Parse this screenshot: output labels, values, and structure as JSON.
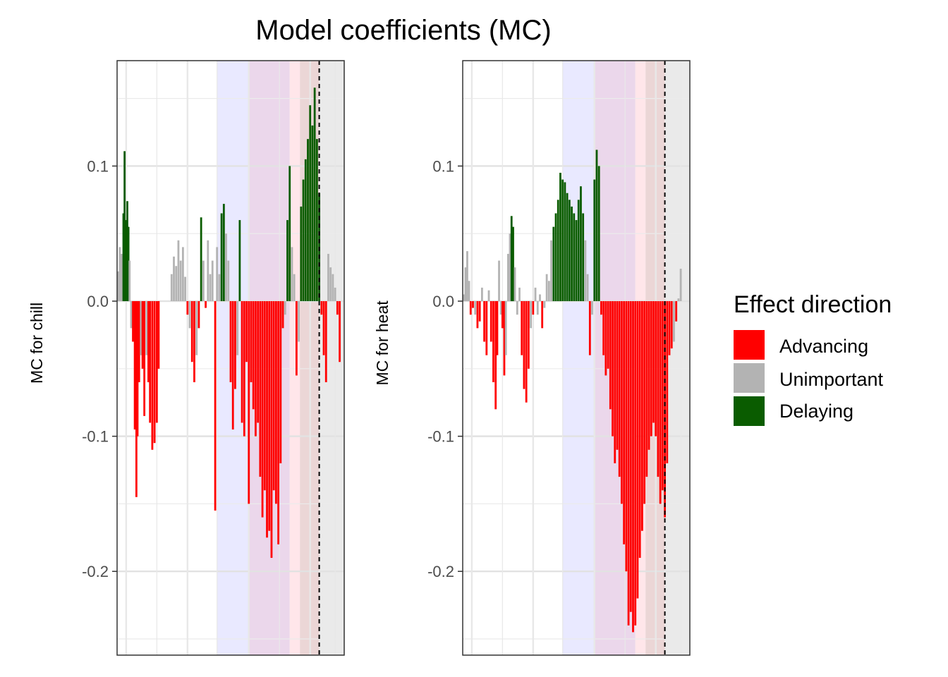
{
  "chart_data": {
    "type": "bar",
    "title": "Model coefficients (MC)",
    "ylim": [
      -0.262,
      0.178
    ],
    "yticks": [
      "0.1",
      "0.0",
      "-0.1",
      "-0.2"
    ],
    "ytick_values": [
      0.1,
      0.0,
      -0.1,
      -0.2
    ],
    "grid": true,
    "reference_line": "dashed",
    "legend": {
      "title": "Effect direction",
      "placement": "right",
      "items": [
        {
          "label": "Advancing",
          "color": "#ff0000"
        },
        {
          "label": "Unimportant",
          "color": "#b3b3b3"
        },
        {
          "label": "Delaying",
          "color": "#0a5c00"
        }
      ]
    },
    "colors": {
      "advancing": "#ff0000",
      "unimportant": "#b3b3b3",
      "delaying": "#0a5c00",
      "band_blue": "#e5e5ff",
      "band_purple": "#e8d0e8",
      "band_pink": "#ffe2e6",
      "band_brown": "#e8cfcf",
      "band_grey": "#e6e6e6"
    },
    "panels": [
      {
        "ylabel": "MC for chill",
        "bars": [
          {
            "x": 0.005,
            "y": 0.022
          },
          {
            "x": 0.012,
            "y": 0.04
          },
          {
            "x": 0.02,
            "y": 0.035
          },
          {
            "x": 0.028,
            "y": 0.065
          },
          {
            "x": 0.033,
            "y": 0.111
          },
          {
            "x": 0.038,
            "y": 0.06
          },
          {
            "x": 0.045,
            "y": 0.074
          },
          {
            "x": 0.05,
            "y": 0.055
          },
          {
            "x": 0.055,
            "y": 0.03
          },
          {
            "x": 0.062,
            "y": -0.02
          },
          {
            "x": 0.07,
            "y": -0.03
          },
          {
            "x": 0.078,
            "y": -0.095
          },
          {
            "x": 0.085,
            "y": -0.145
          },
          {
            "x": 0.09,
            "y": -0.1
          },
          {
            "x": 0.097,
            "y": -0.06
          },
          {
            "x": 0.105,
            "y": -0.04
          },
          {
            "x": 0.112,
            "y": -0.05
          },
          {
            "x": 0.12,
            "y": -0.085
          },
          {
            "x": 0.13,
            "y": -0.04
          },
          {
            "x": 0.138,
            "y": -0.06
          },
          {
            "x": 0.145,
            "y": -0.09
          },
          {
            "x": 0.155,
            "y": -0.11
          },
          {
            "x": 0.165,
            "y": -0.105
          },
          {
            "x": 0.175,
            "y": -0.09
          },
          {
            "x": 0.183,
            "y": -0.05
          },
          {
            "x": 0.24,
            "y": 0.02
          },
          {
            "x": 0.25,
            "y": 0.033
          },
          {
            "x": 0.26,
            "y": 0.026
          },
          {
            "x": 0.27,
            "y": 0.045
          },
          {
            "x": 0.28,
            "y": 0.03
          },
          {
            "x": 0.29,
            "y": 0.04
          },
          {
            "x": 0.3,
            "y": 0.018
          },
          {
            "x": 0.31,
            "y": -0.01
          },
          {
            "x": 0.32,
            "y": -0.02
          },
          {
            "x": 0.33,
            "y": -0.045
          },
          {
            "x": 0.34,
            "y": -0.06
          },
          {
            "x": 0.35,
            "y": -0.04
          },
          {
            "x": 0.36,
            "y": -0.02
          },
          {
            "x": 0.37,
            "y": 0.062
          },
          {
            "x": 0.38,
            "y": 0.03
          },
          {
            "x": 0.39,
            "y": -0.005
          },
          {
            "x": 0.4,
            "y": 0.045
          },
          {
            "x": 0.41,
            "y": 0.02
          },
          {
            "x": 0.42,
            "y": 0.03
          },
          {
            "x": 0.432,
            "y": -0.155
          },
          {
            "x": 0.44,
            "y": 0.04
          },
          {
            "x": 0.45,
            "y": 0.02
          },
          {
            "x": 0.46,
            "y": 0.065
          },
          {
            "x": 0.47,
            "y": 0.072
          },
          {
            "x": 0.48,
            "y": 0.05
          },
          {
            "x": 0.49,
            "y": 0.03
          },
          {
            "x": 0.5,
            "y": -0.06
          },
          {
            "x": 0.51,
            "y": -0.095
          },
          {
            "x": 0.52,
            "y": -0.065
          },
          {
            "x": 0.53,
            "y": -0.04
          },
          {
            "x": 0.54,
            "y": 0.06
          },
          {
            "x": 0.55,
            "y": -0.09
          },
          {
            "x": 0.56,
            "y": -0.1
          },
          {
            "x": 0.57,
            "y": -0.045
          },
          {
            "x": 0.58,
            "y": -0.15
          },
          {
            "x": 0.59,
            "y": -0.06
          },
          {
            "x": 0.6,
            "y": -0.08
          },
          {
            "x": 0.61,
            "y": -0.1
          },
          {
            "x": 0.62,
            "y": -0.09
          },
          {
            "x": 0.63,
            "y": -0.13
          },
          {
            "x": 0.64,
            "y": -0.16
          },
          {
            "x": 0.65,
            "y": -0.14
          },
          {
            "x": 0.66,
            "y": -0.175
          },
          {
            "x": 0.67,
            "y": -0.17
          },
          {
            "x": 0.68,
            "y": -0.19
          },
          {
            "x": 0.69,
            "y": -0.14
          },
          {
            "x": 0.7,
            "y": -0.15
          },
          {
            "x": 0.71,
            "y": -0.18
          },
          {
            "x": 0.72,
            "y": -0.12
          },
          {
            "x": 0.73,
            "y": -0.02
          },
          {
            "x": 0.74,
            "y": -0.01
          },
          {
            "x": 0.75,
            "y": 0.06
          },
          {
            "x": 0.76,
            "y": 0.1
          },
          {
            "x": 0.77,
            "y": 0.04
          },
          {
            "x": 0.78,
            "y": 0.02
          },
          {
            "x": 0.79,
            "y": -0.055
          },
          {
            "x": 0.8,
            "y": -0.03
          },
          {
            "x": 0.81,
            "y": 0.07
          },
          {
            "x": 0.82,
            "y": 0.09
          },
          {
            "x": 0.83,
            "y": 0.105
          },
          {
            "x": 0.84,
            "y": 0.12
          },
          {
            "x": 0.85,
            "y": 0.145
          },
          {
            "x": 0.86,
            "y": 0.13
          },
          {
            "x": 0.87,
            "y": 0.158
          },
          {
            "x": 0.88,
            "y": 0.12
          },
          {
            "x": 0.89,
            "y": 0.08
          },
          {
            "x": 0.9,
            "y": -0.01
          },
          {
            "x": 0.91,
            "y": -0.04
          },
          {
            "x": 0.92,
            "y": -0.06
          },
          {
            "x": 0.93,
            "y": 0.035
          },
          {
            "x": 0.94,
            "y": 0.025
          },
          {
            "x": 0.95,
            "y": 0.02
          },
          {
            "x": 0.96,
            "y": 0.01
          },
          {
            "x": 0.97,
            "y": -0.01
          },
          {
            "x": 0.98,
            "y": -0.045
          }
        ]
      },
      {
        "ylabel": "MC for heat",
        "bars": [
          {
            "x": 0.005,
            "y": 0.005
          },
          {
            "x": 0.012,
            "y": 0.025
          },
          {
            "x": 0.02,
            "y": 0.037
          },
          {
            "x": 0.028,
            "y": 0.015
          },
          {
            "x": 0.035,
            "y": -0.01
          },
          {
            "x": 0.045,
            "y": -0.005
          },
          {
            "x": 0.055,
            "y": -0.01
          },
          {
            "x": 0.065,
            "y": -0.02
          },
          {
            "x": 0.075,
            "y": -0.015
          },
          {
            "x": 0.085,
            "y": 0.01
          },
          {
            "x": 0.095,
            "y": -0.03
          },
          {
            "x": 0.105,
            "y": -0.04
          },
          {
            "x": 0.115,
            "y": 0.008
          },
          {
            "x": 0.125,
            "y": -0.03
          },
          {
            "x": 0.135,
            "y": -0.06
          },
          {
            "x": 0.145,
            "y": -0.08
          },
          {
            "x": 0.152,
            "y": -0.04
          },
          {
            "x": 0.16,
            "y": 0.03
          },
          {
            "x": 0.168,
            "y": -0.01
          },
          {
            "x": 0.175,
            "y": -0.02
          },
          {
            "x": 0.183,
            "y": -0.055
          },
          {
            "x": 0.19,
            "y": -0.04
          },
          {
            "x": 0.2,
            "y": 0.035
          },
          {
            "x": 0.208,
            "y": 0.05
          },
          {
            "x": 0.215,
            "y": 0.063
          },
          {
            "x": 0.222,
            "y": 0.055
          },
          {
            "x": 0.23,
            "y": 0.025
          },
          {
            "x": 0.24,
            "y": -0.01
          },
          {
            "x": 0.25,
            "y": 0.01
          },
          {
            "x": 0.26,
            "y": -0.04
          },
          {
            "x": 0.27,
            "y": -0.065
          },
          {
            "x": 0.28,
            "y": -0.075
          },
          {
            "x": 0.29,
            "y": -0.05
          },
          {
            "x": 0.3,
            "y": -0.02
          },
          {
            "x": 0.31,
            "y": -0.01
          },
          {
            "x": 0.32,
            "y": 0.01
          },
          {
            "x": 0.33,
            "y": -0.01
          },
          {
            "x": 0.34,
            "y": 0.005
          },
          {
            "x": 0.35,
            "y": -0.02
          },
          {
            "x": 0.36,
            "y": -0.005
          },
          {
            "x": 0.37,
            "y": 0.02
          },
          {
            "x": 0.38,
            "y": 0.015
          },
          {
            "x": 0.39,
            "y": 0.045
          },
          {
            "x": 0.4,
            "y": 0.055
          },
          {
            "x": 0.41,
            "y": 0.065
          },
          {
            "x": 0.42,
            "y": 0.075
          },
          {
            "x": 0.43,
            "y": 0.095
          },
          {
            "x": 0.44,
            "y": 0.09
          },
          {
            "x": 0.45,
            "y": 0.088
          },
          {
            "x": 0.46,
            "y": 0.08
          },
          {
            "x": 0.47,
            "y": 0.075
          },
          {
            "x": 0.48,
            "y": 0.07
          },
          {
            "x": 0.49,
            "y": 0.065
          },
          {
            "x": 0.5,
            "y": 0.06
          },
          {
            "x": 0.51,
            "y": 0.075
          },
          {
            "x": 0.52,
            "y": 0.085
          },
          {
            "x": 0.53,
            "y": 0.065
          },
          {
            "x": 0.54,
            "y": 0.045
          },
          {
            "x": 0.55,
            "y": 0.02
          },
          {
            "x": 0.56,
            "y": -0.04
          },
          {
            "x": 0.57,
            "y": -0.01
          },
          {
            "x": 0.58,
            "y": 0.09
          },
          {
            "x": 0.59,
            "y": 0.112
          },
          {
            "x": 0.6,
            "y": 0.1
          },
          {
            "x": 0.61,
            "y": -0.01
          },
          {
            "x": 0.62,
            "y": -0.04
          },
          {
            "x": 0.63,
            "y": -0.055
          },
          {
            "x": 0.64,
            "y": -0.05
          },
          {
            "x": 0.65,
            "y": -0.08
          },
          {
            "x": 0.66,
            "y": -0.1
          },
          {
            "x": 0.67,
            "y": -0.12
          },
          {
            "x": 0.68,
            "y": -0.11
          },
          {
            "x": 0.69,
            "y": -0.13
          },
          {
            "x": 0.7,
            "y": -0.15
          },
          {
            "x": 0.71,
            "y": -0.18
          },
          {
            "x": 0.72,
            "y": -0.2
          },
          {
            "x": 0.73,
            "y": -0.24
          },
          {
            "x": 0.74,
            "y": -0.23
          },
          {
            "x": 0.75,
            "y": -0.245
          },
          {
            "x": 0.76,
            "y": -0.24
          },
          {
            "x": 0.77,
            "y": -0.22
          },
          {
            "x": 0.78,
            "y": -0.19
          },
          {
            "x": 0.79,
            "y": -0.17
          },
          {
            "x": 0.8,
            "y": -0.15
          },
          {
            "x": 0.81,
            "y": -0.13
          },
          {
            "x": 0.82,
            "y": -0.11
          },
          {
            "x": 0.83,
            "y": -0.1
          },
          {
            "x": 0.84,
            "y": -0.09
          },
          {
            "x": 0.85,
            "y": -0.1
          },
          {
            "x": 0.86,
            "y": -0.13
          },
          {
            "x": 0.87,
            "y": -0.15
          },
          {
            "x": 0.88,
            "y": -0.14
          },
          {
            "x": 0.89,
            "y": -0.16
          },
          {
            "x": 0.9,
            "y": -0.12
          },
          {
            "x": 0.91,
            "y": -0.04
          },
          {
            "x": 0.92,
            "y": -0.035
          },
          {
            "x": 0.93,
            "y": -0.03
          },
          {
            "x": 0.94,
            "y": -0.015
          },
          {
            "x": 0.95,
            "y": 0.002
          },
          {
            "x": 0.96,
            "y": 0.024
          }
        ]
      }
    ]
  }
}
